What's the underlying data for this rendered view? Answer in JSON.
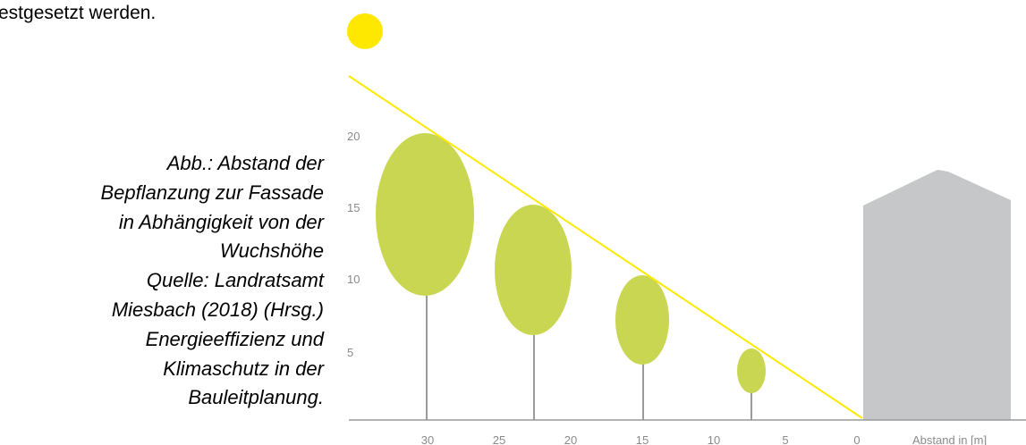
{
  "intro": "estgesetzt werden.",
  "caption": {
    "lines": [
      "Abb.: Abstand der",
      "Bepflanzung zur Fassade",
      "in Abhängigkeit von der",
      "Wuchshöhe",
      "Quelle: Landratsamt",
      "Miesbach (2018) (Hrsg.)",
      "Energieeffizienz und",
      "Klimaschutz in der",
      "Bauleitplanung."
    ]
  },
  "figure": {
    "y_ticks": [
      "20",
      "15",
      "10",
      "5"
    ],
    "x_ticks": [
      "30",
      "25",
      "20",
      "15",
      "10",
      "5",
      "0"
    ],
    "x_axis_label": "Abstand in [m]"
  }
}
